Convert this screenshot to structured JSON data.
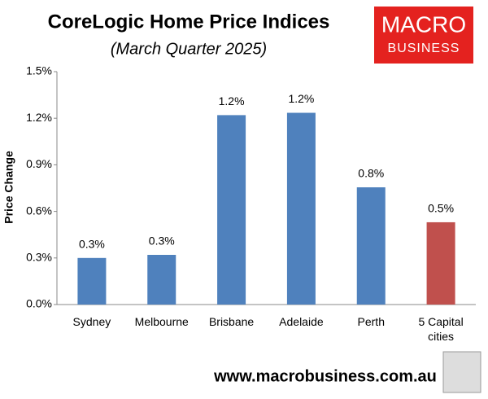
{
  "chart_data": {
    "type": "bar",
    "title": "CoreLogic Home Price Indices",
    "subtitle": "(March Quarter 2025)",
    "y_label": "Price Change",
    "categories": [
      "Sydney",
      "Melbourne",
      "Brisbane",
      "Adelaide",
      "Perth",
      "5 Capital cities"
    ],
    "values": [
      0.3,
      0.32,
      1.22,
      1.235,
      0.755,
      0.53
    ],
    "value_labels": [
      "0.3%",
      "0.3%",
      "1.2%",
      "1.2%",
      "0.8%",
      "0.5%"
    ],
    "colors": [
      "#4f81bd",
      "#4f81bd",
      "#4f81bd",
      "#4f81bd",
      "#4f81bd",
      "#c0504d"
    ],
    "ylim": [
      0,
      1.5
    ],
    "yticks": [
      {
        "value": 0,
        "label": "0.0%"
      },
      {
        "value": 0.3,
        "label": "0.3%"
      },
      {
        "value": 0.6,
        "label": "0.6%"
      },
      {
        "value": 0.9,
        "label": "0.9%"
      },
      {
        "value": 1.2,
        "label": "1.2%"
      },
      {
        "value": 1.5,
        "label": "1.5%"
      }
    ],
    "grid": false
  },
  "logo": {
    "line1": "MACRO",
    "line2": "BUSINESS"
  },
  "footer": "www.macrobusiness.com.au"
}
